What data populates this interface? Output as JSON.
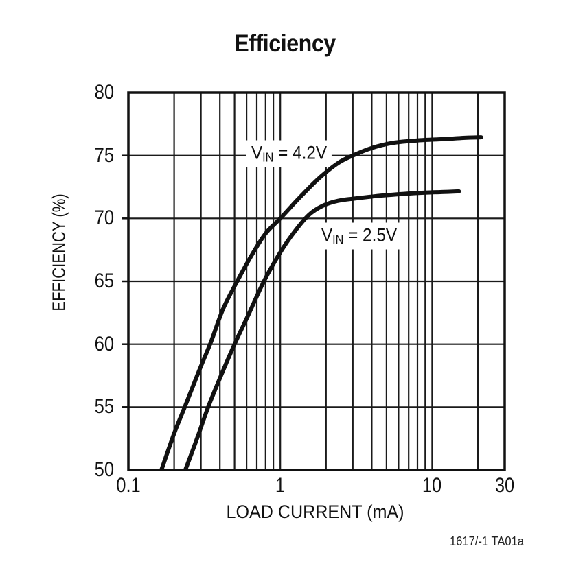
{
  "page": {
    "background": "#ffffff"
  },
  "title": "Efficiency",
  "footnote": "1617/-1 TA01a",
  "chart_data": {
    "type": "line",
    "title": "Efficiency",
    "xlabel": "LOAD CURRENT (mA)",
    "ylabel": "EFFICIENCY (%)",
    "x_scale": "log",
    "xlim": [
      0.1,
      30
    ],
    "ylim": [
      50,
      80
    ],
    "grid": "on",
    "x_ticks": [
      {
        "v": 0.1,
        "label": "0.1"
      },
      {
        "v": 1,
        "label": "1"
      },
      {
        "v": 10,
        "label": "10"
      },
      {
        "v": 30,
        "label": "30"
      }
    ],
    "y_ticks": [
      {
        "v": 80,
        "label": "80"
      },
      {
        "v": 75,
        "label": "75"
      },
      {
        "v": 70,
        "label": "70"
      },
      {
        "v": 65,
        "label": "65"
      },
      {
        "v": 60,
        "label": "60"
      },
      {
        "v": 55,
        "label": "55"
      },
      {
        "v": 50,
        "label": "50"
      }
    ],
    "x_gridlines": [
      0.2,
      0.3,
      0.4,
      0.5,
      0.6,
      0.7,
      0.8,
      0.9,
      1,
      2,
      3,
      4,
      5,
      6,
      7,
      8,
      9,
      10,
      20
    ],
    "y_gridlines": [
      55,
      60,
      65,
      70,
      75
    ],
    "colors": {
      "line": "#111111",
      "grid": "#1a1a1a",
      "frame": "#111111",
      "text": "#111111",
      "background": "#ffffff"
    },
    "series": [
      {
        "name": "VIN = 4.2V",
        "annotation": {
          "pre": "V",
          "sub": "IN",
          "post": " = 4.2V",
          "x": 1.14,
          "y": 75.15
        },
        "points": [
          [
            0.165,
            50
          ],
          [
            0.2,
            52.9
          ],
          [
            0.235,
            55
          ],
          [
            0.29,
            57.8
          ],
          [
            0.35,
            60.2
          ],
          [
            0.42,
            62.8
          ],
          [
            0.52,
            65
          ],
          [
            0.65,
            67.1
          ],
          [
            0.8,
            68.8
          ],
          [
            1.0,
            70
          ],
          [
            1.35,
            71.7
          ],
          [
            1.8,
            73.2
          ],
          [
            2.4,
            74.4
          ],
          [
            3.0,
            75
          ],
          [
            4.0,
            75.6
          ],
          [
            5.5,
            76.0
          ],
          [
            8.0,
            76.2
          ],
          [
            12,
            76.3
          ],
          [
            16,
            76.4
          ],
          [
            21,
            76.45
          ]
        ]
      },
      {
        "name": "VIN = 2.5V",
        "annotation": {
          "pre": "V",
          "sub": "IN",
          "post": " = 2.5V",
          "x": 3.3,
          "y": 68.6
        },
        "points": [
          [
            0.237,
            50
          ],
          [
            0.285,
            52.6
          ],
          [
            0.335,
            55
          ],
          [
            0.41,
            57.6
          ],
          [
            0.5,
            60
          ],
          [
            0.62,
            62.4
          ],
          [
            0.78,
            65
          ],
          [
            1.0,
            67.3
          ],
          [
            1.25,
            69.0
          ],
          [
            1.55,
            70.3
          ],
          [
            1.9,
            71.0
          ],
          [
            2.4,
            71.4
          ],
          [
            3.2,
            71.6
          ],
          [
            4.5,
            71.8
          ],
          [
            6.5,
            71.95
          ],
          [
            9,
            72.05
          ],
          [
            12,
            72.1
          ],
          [
            15,
            72.15
          ]
        ]
      }
    ]
  }
}
